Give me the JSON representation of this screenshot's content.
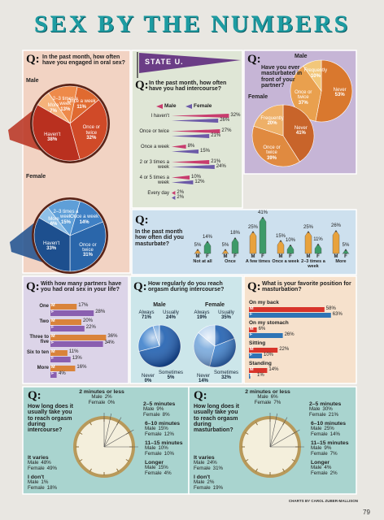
{
  "title": "SEX BY THE NUMBERS",
  "question_marker": "Q:",
  "credit": "CHARTS BY CAROL ZUBER-MALLISON",
  "page_number": "79",
  "chart_data": [
    {
      "type": "pie",
      "title": "In the past month, how often have you engaged in oral sex?",
      "categories": [
        "More",
        "2–3 times a week",
        "Once a week",
        "Once or twice",
        "Haven't"
      ],
      "series": [
        {
          "name": "Male",
          "colors": [
            "#f5b27a",
            "#ee8a4a",
            "#e06a30",
            "#d04a28",
            "#b9301f"
          ],
          "values": [
            7,
            13,
            11,
            32,
            38
          ],
          "value_labels": [
            "7%",
            "13%",
            "11%",
            "32%",
            "38%"
          ]
        },
        {
          "name": "Female",
          "colors": [
            "#8fc0e8",
            "#5f9fd8",
            "#3f80c4",
            "#2a66aa",
            "#1d4f8e"
          ],
          "values": [
            6,
            15,
            14,
            31,
            33
          ],
          "value_labels": [
            "6%",
            "15%",
            "14%",
            "31%",
            "33%"
          ]
        }
      ]
    },
    {
      "type": "bar",
      "orientation": "horizontal",
      "banner": "STATE U.",
      "title": "In the past month, how often have you had intercourse?",
      "legend": "top",
      "categories": [
        "I haven't",
        "Once or twice",
        "Once a week",
        "2 or 3 times a week",
        "4 or 5 times a week",
        "Every day"
      ],
      "series": [
        {
          "name": "Male",
          "color": "#c83c6e",
          "values": [
            32,
            27,
            8,
            21,
            10,
            2
          ],
          "value_labels": [
            "32%",
            "27%",
            "8%",
            "21%",
            "10%",
            "2%"
          ]
        },
        {
          "name": "Female",
          "color": "#6c5aa8",
          "values": [
            26,
            21,
            15,
            24,
            12,
            2
          ],
          "value_labels": [
            "26%",
            "21%",
            "15%",
            "24%",
            "12%",
            "2%"
          ]
        }
      ]
    },
    {
      "type": "pie",
      "title": "Have you ever masturbated in front of your partner?",
      "categories": [
        "Never",
        "Once or twice",
        "Frequently"
      ],
      "series": [
        {
          "name": "Male",
          "colors": [
            "#d9782e",
            "#e9a04e",
            "#f2c77a"
          ],
          "values": [
            53,
            37,
            10
          ],
          "value_labels": [
            "53%",
            "37%",
            "10%"
          ]
        },
        {
          "name": "Female",
          "colors": [
            "#c8642a",
            "#e08a40",
            "#eeb068"
          ],
          "values": [
            41,
            39,
            20
          ],
          "value_labels": [
            "41%",
            "39%",
            "20%"
          ]
        }
      ]
    },
    {
      "type": "bar",
      "orientation": "vertical",
      "title": "In the past month how often did you masturbate?",
      "categories": [
        "Not at all",
        "Once",
        "A few times",
        "Once a week",
        "2–3 times a week",
        "More"
      ],
      "series": [
        {
          "name": "M",
          "color": "#e8a23c",
          "values": [
            5,
            5,
            25,
            15,
            25,
            26
          ],
          "value_labels": [
            "5%",
            "5%",
            "25%",
            "15%",
            "25%",
            "26%"
          ]
        },
        {
          "name": "F",
          "color": "#3d9a68",
          "values": [
            14,
            18,
            41,
            10,
            11,
            5
          ],
          "value_labels": [
            "14%",
            "18%",
            "41%",
            "10%",
            "11%",
            "5%"
          ]
        }
      ]
    },
    {
      "type": "bar",
      "orientation": "horizontal",
      "title": "With how many partners have you had oral sex in your life?",
      "categories": [
        "One",
        "Two",
        "Three to five",
        "Six to ten",
        "More"
      ],
      "series": [
        {
          "name": "M",
          "color": "#d9833a",
          "values": [
            17,
            20,
            36,
            11,
            16
          ],
          "value_labels": [
            "17%",
            "20%",
            "36%",
            "11%",
            "16%"
          ]
        },
        {
          "name": "F",
          "color": "#8a5fb0",
          "values": [
            28,
            22,
            34,
            13,
            4
          ],
          "value_labels": [
            "28%",
            "22%",
            "34%",
            "13%",
            "4%"
          ]
        }
      ]
    },
    {
      "type": "pie",
      "title": "How regularly do you reach orgasm during intercourse?",
      "categories": [
        "Always",
        "Usually",
        "Sometimes",
        "Never"
      ],
      "series": [
        {
          "name": "Male",
          "colors": [
            "#1f5fb0",
            "#3f82cc",
            "#78a9dc",
            "#b8d2ee"
          ],
          "values": [
            71,
            24,
            5,
            0
          ],
          "value_labels": [
            "71%",
            "24%",
            "5%",
            "0%"
          ]
        },
        {
          "name": "Female",
          "colors": [
            "#1f5fb0",
            "#3f82cc",
            "#78a9dc",
            "#b8d2ee"
          ],
          "values": [
            19,
            35,
            32,
            14
          ],
          "value_labels": [
            "19%",
            "35%",
            "32%",
            "14%"
          ]
        }
      ]
    },
    {
      "type": "bar",
      "orientation": "horizontal",
      "title": "What is your favorite position for masturbation?",
      "categories": [
        "On my back",
        "On my stomach",
        "Sitting",
        "Standing"
      ],
      "series": [
        {
          "name": "M",
          "color": "#d8342a",
          "values": [
            58,
            6,
            22,
            14
          ],
          "value_labels": [
            "58%",
            "6%",
            "22%",
            "14%"
          ]
        },
        {
          "name": "F",
          "color": "#2f74b5",
          "values": [
            63,
            26,
            10,
            1
          ],
          "value_labels": [
            "63%",
            "26%",
            "10%",
            "1%"
          ]
        }
      ]
    },
    {
      "type": "clock",
      "title": "How long does it usually take you to reach orgasm during intercourse?",
      "categories": [
        "2 minutes or less",
        "2–5 minutes",
        "6–10 minutes",
        "11–15 minutes",
        "Longer",
        "It varies",
        "I don't"
      ],
      "series": [
        {
          "name": "Male",
          "values": [
            2,
            9,
            15,
            10,
            15,
            48,
            1
          ],
          "value_labels": [
            "2%",
            "9%",
            "15%",
            "10%",
            "15%",
            "48%",
            "1%"
          ]
        },
        {
          "name": "Female",
          "values": [
            0,
            8,
            12,
            10,
            4,
            49,
            18
          ],
          "value_labels": [
            "0%",
            "8%",
            "12%",
            "10%",
            "4%",
            "49%",
            "18%"
          ]
        }
      ]
    },
    {
      "type": "clock",
      "title": "How long does it usually take you to reach orgasm during masturbation?",
      "categories": [
        "2 minutes or less",
        "2–5 minutes",
        "6–10 minutes",
        "11–15 minutes",
        "Longer",
        "It varies",
        "I don't"
      ],
      "series": [
        {
          "name": "Male",
          "values": [
            6,
            30,
            25,
            9,
            4,
            24,
            2
          ],
          "value_labels": [
            "6%",
            "30%",
            "25%",
            "9%",
            "4%",
            "24%",
            "2%"
          ]
        },
        {
          "name": "Female",
          "values": [
            7,
            21,
            14,
            7,
            2,
            31,
            19
          ],
          "value_labels": [
            "7%",
            "21%",
            "14%",
            "7%",
            "2%",
            "31%",
            "19%"
          ]
        }
      ]
    }
  ]
}
